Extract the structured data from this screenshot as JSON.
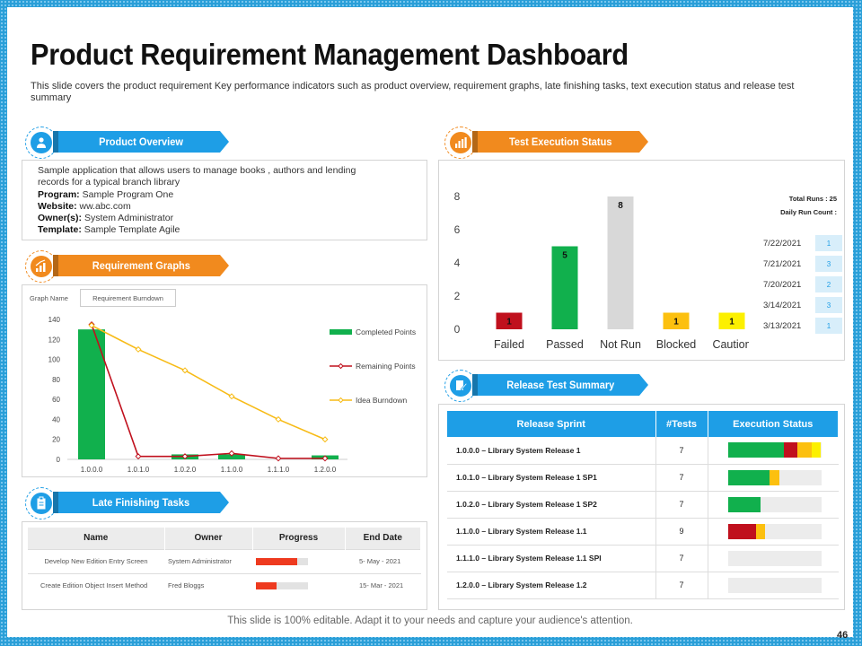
{
  "title": "Product Requirement Management Dashboard",
  "subtitle": "This slide covers the product requirement Key performance indicators such as product overview, requirement graphs, late finishing tasks, text execution status and release test summary",
  "colors": {
    "blue": "#1e9ee6",
    "orange": "#f18a1e",
    "green": "#11b04d",
    "red": "#c0101d",
    "gray": "#d8d8d8",
    "yellow": "#fcc00f",
    "line_yellow": "#f7bb16"
  },
  "sections": {
    "product_overview": {
      "label": "Product Overview",
      "icon": "user-hand-icon"
    },
    "requirement_graphs": {
      "label": "Requirement Graphs",
      "icon": "chart-up-icon"
    },
    "late_tasks": {
      "label": "Late Finishing Tasks",
      "icon": "clipboard-icon"
    },
    "test_execution": {
      "label": "Test Execution Status",
      "icon": "bar-chart-icon"
    },
    "release_summary": {
      "label": "Release Test Summary",
      "icon": "edit-document-icon"
    }
  },
  "product_overview": {
    "description": "Sample application that allows users to manage books , authors and lending records for a typical branch library",
    "fields": [
      {
        "label": "Program:",
        "value": "Sample Program One"
      },
      {
        "label": "Website:",
        "value": "ww.abc.com"
      },
      {
        "label": "Owner(s):",
        "value": "System Administrator"
      },
      {
        "label": "Template:",
        "value": "Sample Template Agile"
      }
    ]
  },
  "graph_selector": {
    "label": "Graph Name",
    "value": "Requirement Burndown"
  },
  "late_tasks": {
    "headers": [
      "Name",
      "Owner",
      "Progress",
      "End Date"
    ],
    "rows": [
      {
        "name": "Develop New Edition Entry Screen",
        "owner": "System Administrator",
        "progress": 0.8,
        "end_date": "5- May - 2021"
      },
      {
        "name": "Create Edition Object Insert Method",
        "owner": "Fred Bloggs",
        "progress": 0.4,
        "end_date": "15- Mar - 2021"
      }
    ]
  },
  "test_summary": {
    "total_runs": "Total Runs : 25",
    "daily_label": "Daily Run Count :",
    "daily_runs": [
      {
        "date": "7/22/2021",
        "count": "1"
      },
      {
        "date": "7/21/2021",
        "count": "3"
      },
      {
        "date": "7/20/2021",
        "count": "2"
      },
      {
        "date": "3/14/2021",
        "count": "3"
      },
      {
        "date": "3/13/2021",
        "count": "1"
      }
    ]
  },
  "release_summary": {
    "headers": [
      "Release Sprint",
      "#Tests",
      "Execution Status"
    ],
    "rows": [
      {
        "sprint": "1.0.0.0 – Library System Release 1",
        "tests": "7",
        "status": [
          0.6,
          0.15,
          0.15,
          0.1
        ]
      },
      {
        "sprint": "1.0.1.0 – Library System Release 1 SP1",
        "tests": "7",
        "status": [
          0.45,
          0,
          0.1,
          0
        ]
      },
      {
        "sprint": "1.0.2.0 – Library System Release 1 SP2",
        "tests": "7",
        "status": [
          0.35,
          0,
          0,
          0
        ]
      },
      {
        "sprint": "1.1.0.0 – Library System Release 1.1",
        "tests": "9",
        "status": [
          0,
          0.3,
          0.1,
          0
        ]
      },
      {
        "sprint": "1.1.1.0 – Library System Release 1.1 SPI",
        "tests": "7",
        "status": [
          0,
          0,
          0,
          0
        ]
      },
      {
        "sprint": "1.2.0.0 – Library System Release 1.2",
        "tests": "7",
        "status": [
          0,
          0,
          0,
          0
        ]
      }
    ]
  },
  "chart_data": [
    {
      "type": "bar",
      "title": "Test Execution Status",
      "categories": [
        "Failed",
        "Passed",
        "Not Run",
        "Blocked",
        "Caution"
      ],
      "values": [
        1,
        5,
        8,
        1,
        1
      ],
      "value_labels": [
        "1",
        "5",
        "8",
        "1",
        "1"
      ],
      "colors": [
        "#c0101d",
        "#11b04d",
        "#d8d8d8",
        "#fcc00f",
        "#fcf000"
      ],
      "yticks": [
        "0",
        "2",
        "4",
        "6",
        "8"
      ],
      "ylim": [
        0,
        8
      ]
    },
    {
      "type": "bar+line",
      "title": "Requirement Burndown",
      "categories": [
        "1.0.0.0",
        "1.0.1.0",
        "1.0.2.0",
        "1.1.0.0",
        "1.1.1.0",
        "1.2.0.0"
      ],
      "ylim": [
        0,
        140
      ],
      "yticks": [
        "0",
        "20",
        "40",
        "60",
        "80",
        "100",
        "120",
        "140"
      ],
      "legend": [
        "Completed Points",
        "Remaining Points",
        "Idea Burndown"
      ],
      "series": [
        {
          "name": "Completed Points",
          "kind": "bar",
          "values": [
            130,
            0,
            5,
            5,
            0,
            4
          ]
        },
        {
          "name": "Remaining Points",
          "kind": "line",
          "values": [
            135,
            3,
            3,
            6,
            1,
            1
          ]
        },
        {
          "name": "Idea Burndown",
          "kind": "line",
          "values": [
            134,
            110,
            89,
            63,
            40,
            20
          ]
        }
      ]
    }
  ],
  "footer": "This slide is 100% editable. Adapt it to your needs and capture your audience's attention.",
  "page_number": "46"
}
